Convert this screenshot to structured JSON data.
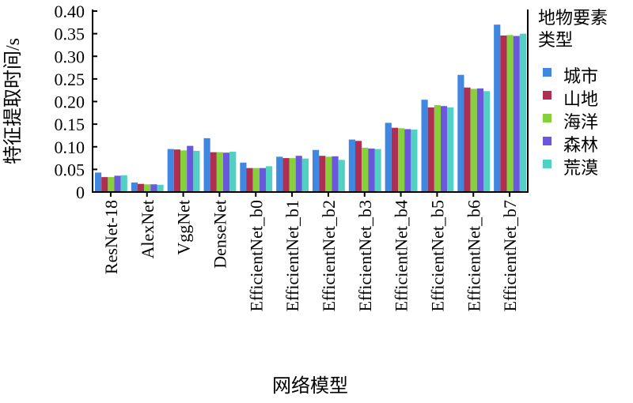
{
  "chart_data": {
    "type": "bar",
    "title": "",
    "xlabel": "网络模型",
    "ylabel": "特征提取时间/s",
    "ylim": [
      0,
      0.4
    ],
    "yticks": [
      "0",
      "0.05",
      "0.10",
      "0.15",
      "0.20",
      "0.25",
      "0.30",
      "0.35",
      "0.40"
    ],
    "grid": false,
    "legend_title": [
      "地物要素",
      "类型"
    ],
    "legend_placement": "right",
    "categories": [
      "ResNet-18",
      "AlexNet",
      "VggNet",
      "DenseNet",
      "EfficientNet_b0",
      "EfficientNet_b1",
      "EfficientNet_b2",
      "EfficientNet_b3",
      "EfficientNet_b4",
      "EfficientNet_b5",
      "EfficientNet_b6",
      "EfficientNet_b7"
    ],
    "series": [
      {
        "name": "城市",
        "color": "#3f87e0",
        "values": [
          0.043,
          0.021,
          0.095,
          0.119,
          0.065,
          0.078,
          0.093,
          0.116,
          0.153,
          0.204,
          0.259,
          0.37
        ]
      },
      {
        "name": "山地",
        "color": "#ae2f52",
        "values": [
          0.033,
          0.018,
          0.094,
          0.088,
          0.053,
          0.075,
          0.08,
          0.113,
          0.142,
          0.187,
          0.231,
          0.346
        ]
      },
      {
        "name": "海洋",
        "color": "#86d13b",
        "values": [
          0.033,
          0.017,
          0.092,
          0.088,
          0.053,
          0.075,
          0.078,
          0.098,
          0.141,
          0.192,
          0.228,
          0.347
        ]
      },
      {
        "name": "森林",
        "color": "#6b57dc",
        "values": [
          0.036,
          0.017,
          0.102,
          0.087,
          0.053,
          0.08,
          0.079,
          0.096,
          0.139,
          0.19,
          0.229,
          0.345
        ]
      },
      {
        "name": "荒漠",
        "color": "#52d0c4",
        "values": [
          0.037,
          0.016,
          0.091,
          0.089,
          0.057,
          0.074,
          0.071,
          0.095,
          0.138,
          0.187,
          0.223,
          0.35
        ]
      }
    ]
  }
}
